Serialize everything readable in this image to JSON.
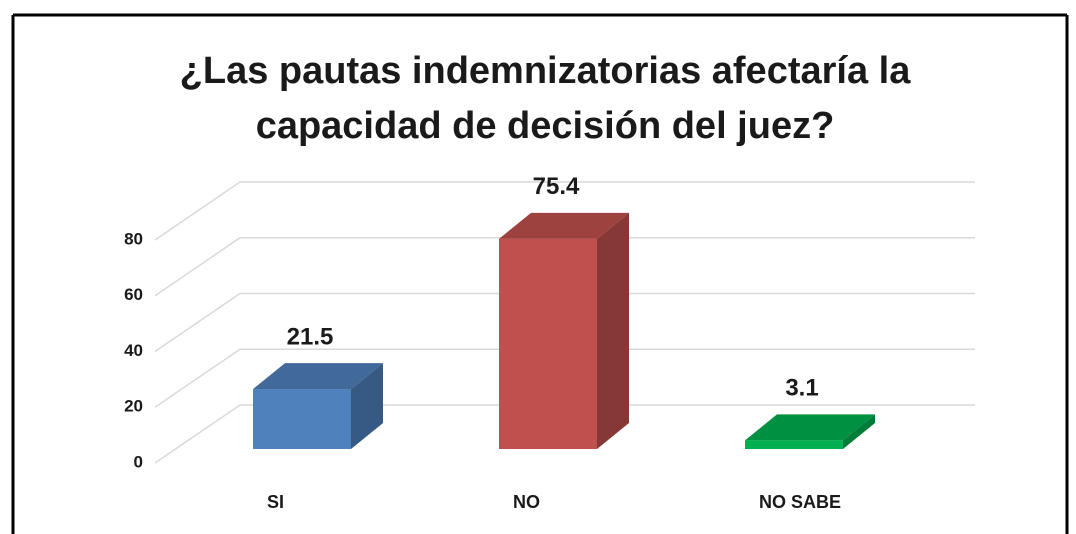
{
  "chart_data": {
    "type": "bar",
    "title": [
      "¿Las pautas indemnizatorias afectaría la",
      "capacidad de decisión del juez?"
    ],
    "categories": [
      "SI",
      "NO",
      "NO SABE"
    ],
    "values": [
      21.5,
      75.4,
      3.1
    ],
    "colors": [
      "#4f81bd",
      "#c0504d",
      "#00b050"
    ],
    "ylim": [
      0,
      80
    ],
    "yticks": [
      0,
      20,
      40,
      60,
      80
    ],
    "grid": true
  }
}
